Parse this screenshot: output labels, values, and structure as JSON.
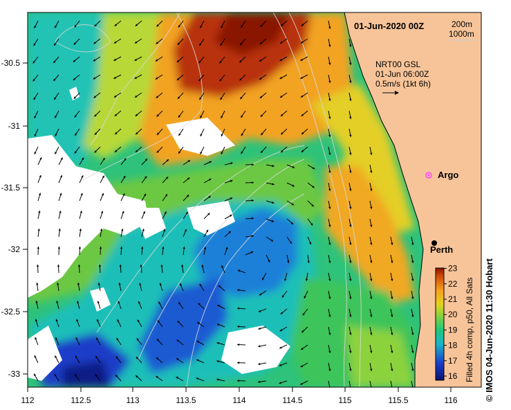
{
  "map": {
    "date_title": "01-Jun-2020 00Z",
    "isobath_legend": [
      "200m",
      "1000m"
    ],
    "current_info": [
      "NRT00 GSL",
      "01-Jun 06:00Z",
      "0.5m/s (1kt 6h)"
    ],
    "argo_label": "Argo",
    "city_label": "Perth",
    "credit": "© IMOS 04-Jun-2020 11:30 Hobart",
    "x_ticks": [
      "112",
      "112.5",
      "113",
      "113.5",
      "114",
      "114.5",
      "115",
      "115.5",
      "116"
    ],
    "y_ticks": [
      "-30.5",
      "-31",
      "-31.5",
      "-32",
      "-32.5",
      "-33"
    ],
    "colorbar": {
      "title": "Filled 4h comp, p50, All Sats",
      "ticks": [
        "16",
        "17",
        "18",
        "19",
        "20",
        "21",
        "22",
        "23"
      ]
    },
    "colors": {
      "land": "#f7c499",
      "argo_marker": "#ff44ff",
      "cold": "#1a2a9a",
      "warm": "#8a1a00"
    }
  }
}
